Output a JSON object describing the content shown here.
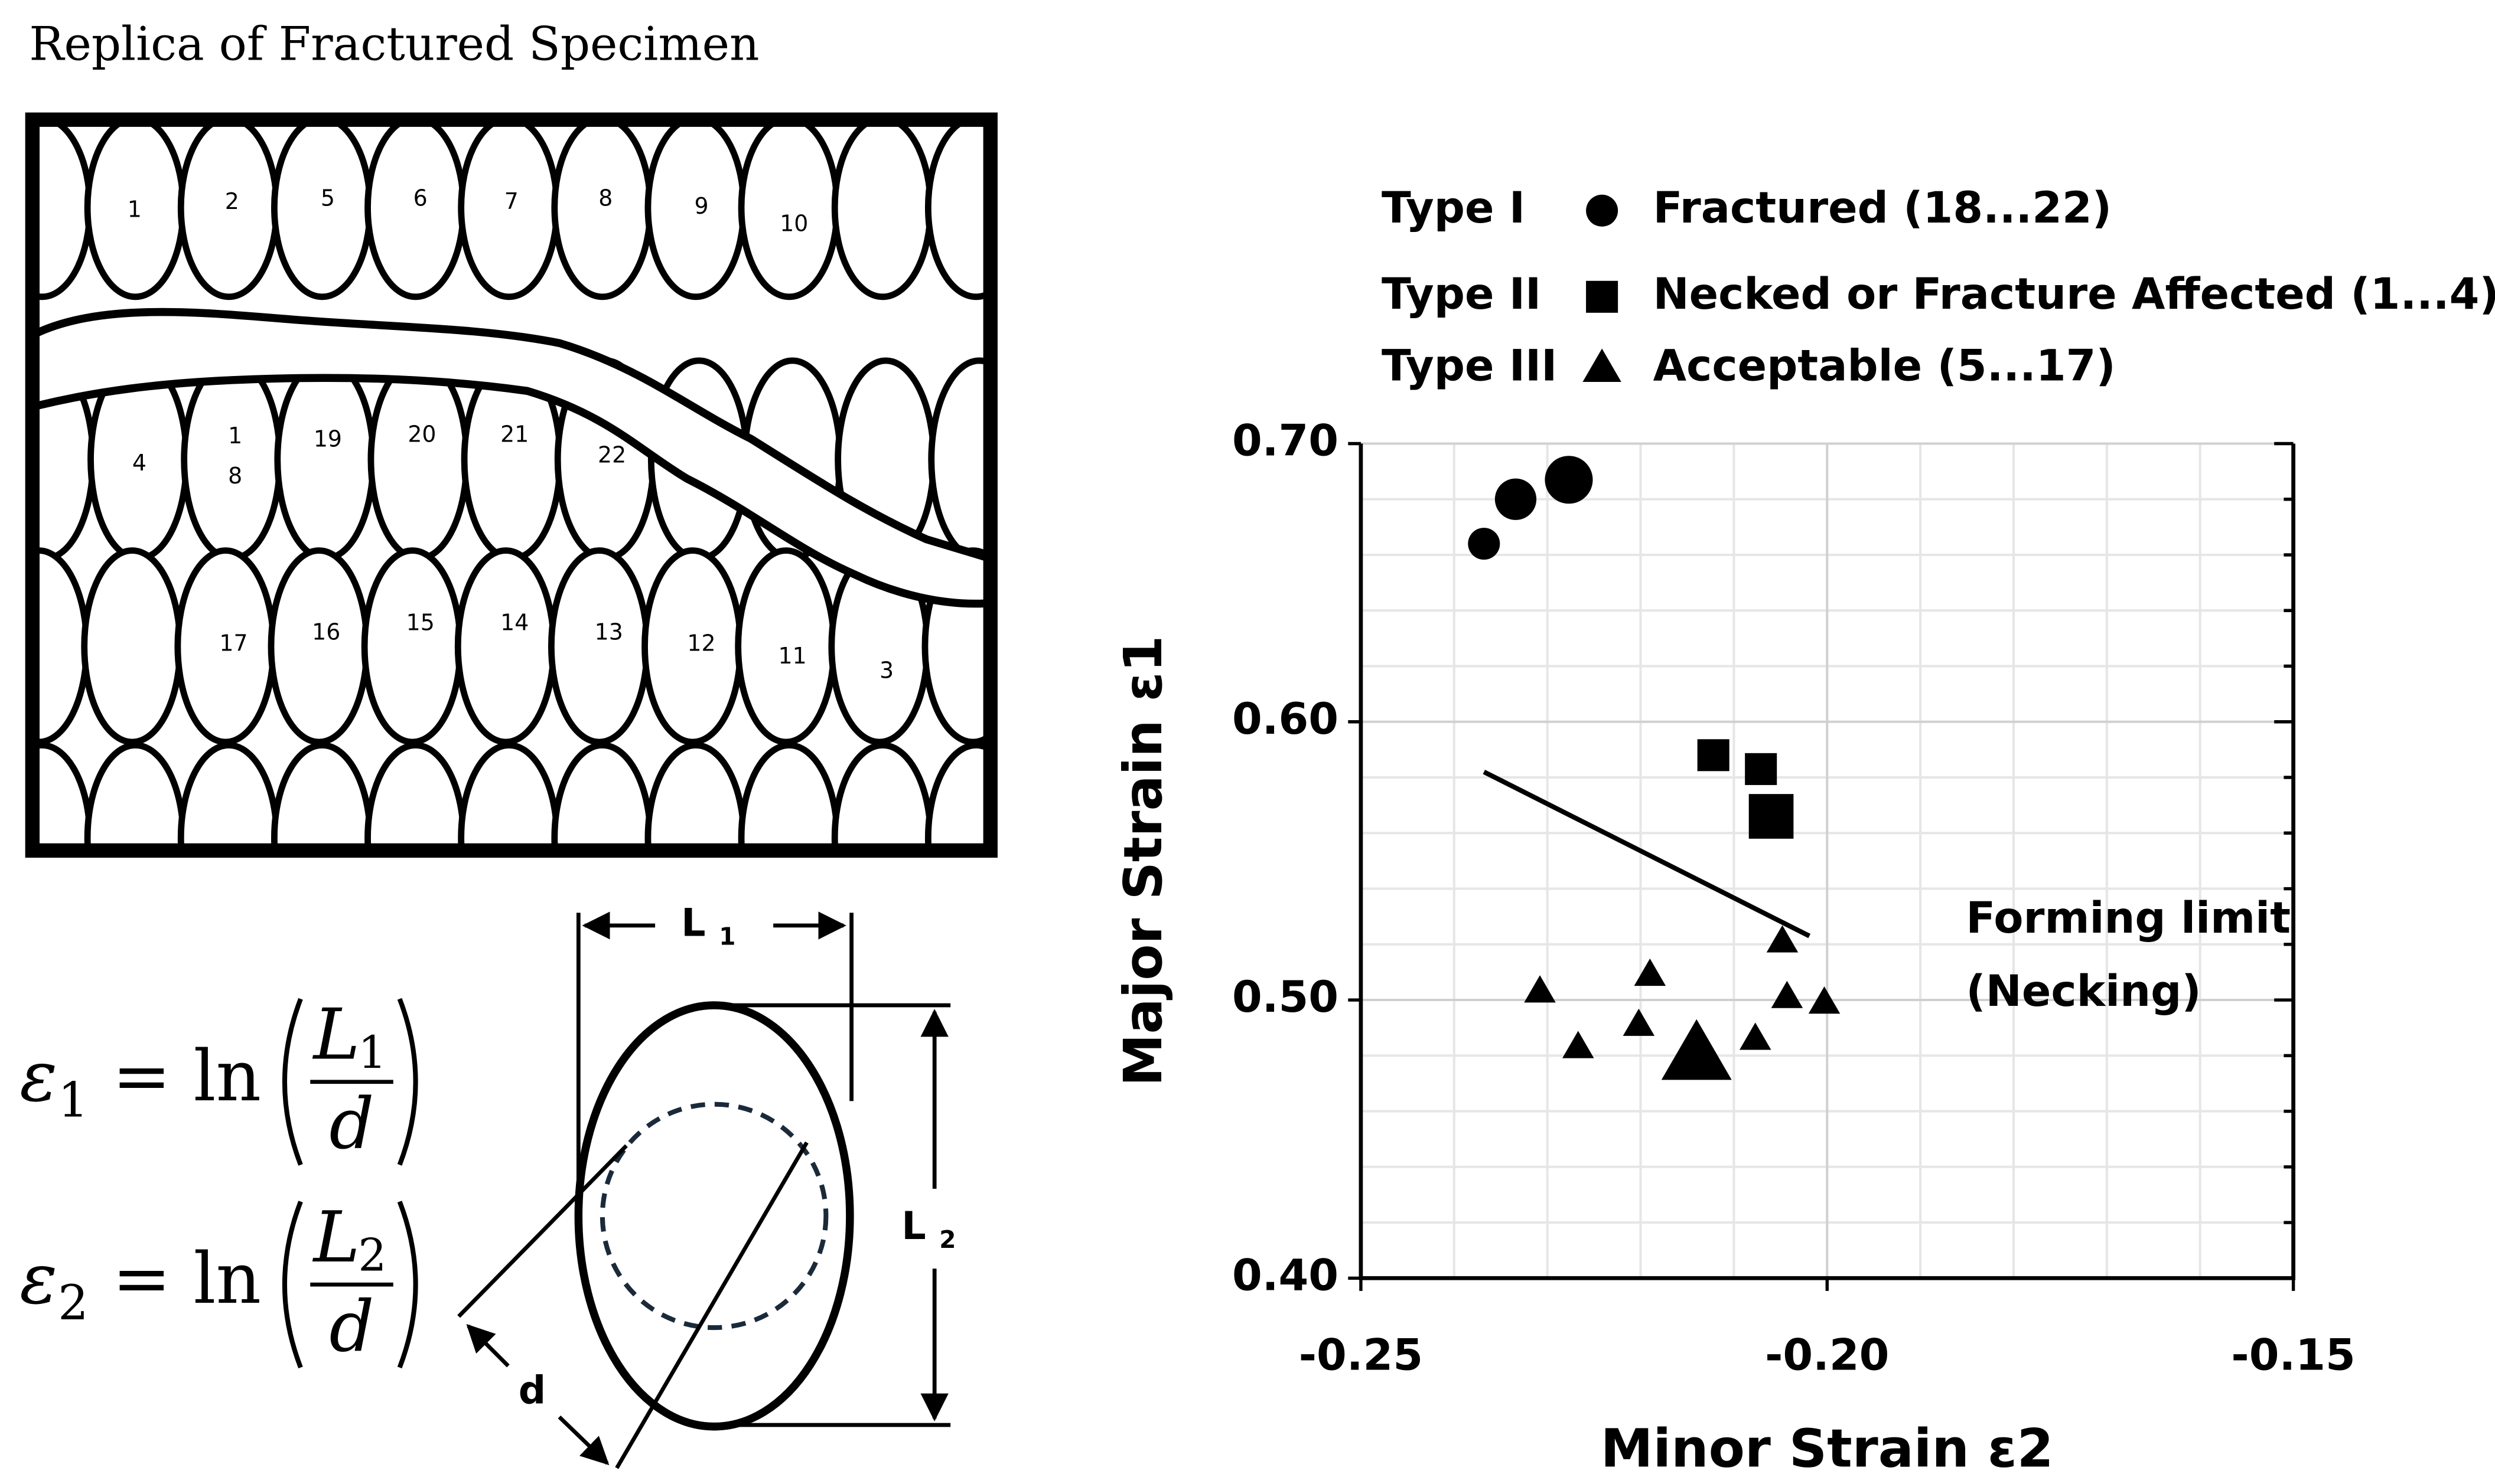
{
  "diagram": {
    "title": "Replica of Fractured Specimen",
    "cell_labels": [
      "1",
      "2",
      "5",
      "6",
      "7",
      "8",
      "9",
      "10",
      "4",
      "1",
      "8",
      "19",
      "20",
      "21",
      "22",
      "17",
      "16",
      "15",
      "14",
      "13",
      "12",
      "11",
      "3"
    ],
    "formulas": [
      {
        "lhs": "ε",
        "lhs_sub": "1",
        "eq": "= ln",
        "num": "L",
        "num_sub": "1",
        "den": "d"
      },
      {
        "lhs": "ε",
        "lhs_sub": "2",
        "eq": "= ln",
        "num": "L",
        "num_sub": "2",
        "den": "d"
      }
    ],
    "dimension_labels": [
      {
        "text": "L",
        "sub": "1"
      },
      {
        "text": "L",
        "sub": "2"
      },
      {
        "text": "d",
        "sub": ""
      }
    ]
  },
  "chart_data": {
    "type": "scatter",
    "xlabel": "Minor Strain ε2",
    "ylabel": "Major Strain ε1",
    "xlim": [
      -0.25,
      -0.15
    ],
    "ylim": [
      0.4,
      0.7
    ],
    "xticks": [
      {
        "value": -0.25,
        "label": "-0.25"
      },
      {
        "value": -0.2,
        "label": "-0.20"
      },
      {
        "value": -0.15,
        "label": "-0.15"
      }
    ],
    "yticks": [
      {
        "value": 0.4,
        "label": "0.40"
      },
      {
        "value": 0.5,
        "label": "0.50"
      },
      {
        "value": 0.6,
        "label": "0.60"
      },
      {
        "value": 0.7,
        "label": "0.70"
      }
    ],
    "minor_xticks": [
      -0.24,
      -0.23,
      -0.22,
      -0.21,
      -0.19,
      -0.18,
      -0.17,
      -0.16
    ],
    "minor_yticks": [
      0.42,
      0.44,
      0.46,
      0.48,
      0.52,
      0.54,
      0.56,
      0.58,
      0.62,
      0.64,
      0.66,
      0.68
    ],
    "grid": true,
    "series": [
      {
        "name": "Type I",
        "description": "Fractured (18...22)",
        "marker": "circle",
        "color": "#000000",
        "x": [
          -0.2368,
          -0.2334,
          -0.2277
        ],
        "values": [
          0.664,
          0.68,
          0.687
        ],
        "sizes": [
          10,
          13,
          15
        ]
      },
      {
        "name": "Type II",
        "description": "Necked or Fracture Affected (1...4)",
        "marker": "square",
        "color": "#000000",
        "x": [
          -0.2122,
          -0.2071,
          -0.206
        ],
        "values": [
          0.588,
          0.583,
          0.566
        ],
        "sizes": [
          10,
          10,
          14
        ]
      },
      {
        "name": "Type III",
        "description": "Acceptable (5...17)",
        "marker": "triangle",
        "color": "#000000",
        "x": [
          -0.2308,
          -0.219,
          -0.2267,
          -0.2202,
          -0.214,
          -0.2077,
          -0.2048,
          -0.2043,
          -0.2003
        ],
        "values": [
          0.503,
          0.509,
          0.483,
          0.491,
          0.48,
          0.486,
          0.521,
          0.501,
          0.499
        ],
        "sizes": [
          9,
          9,
          9,
          9,
          20,
          9,
          9,
          9,
          9
        ]
      }
    ],
    "forming_limit_line": {
      "x": [
        -0.2368,
        -0.2019
      ],
      "values": [
        0.582,
        0.523
      ]
    },
    "annotation": [
      "Forming limit",
      "(Necking)"
    ]
  }
}
